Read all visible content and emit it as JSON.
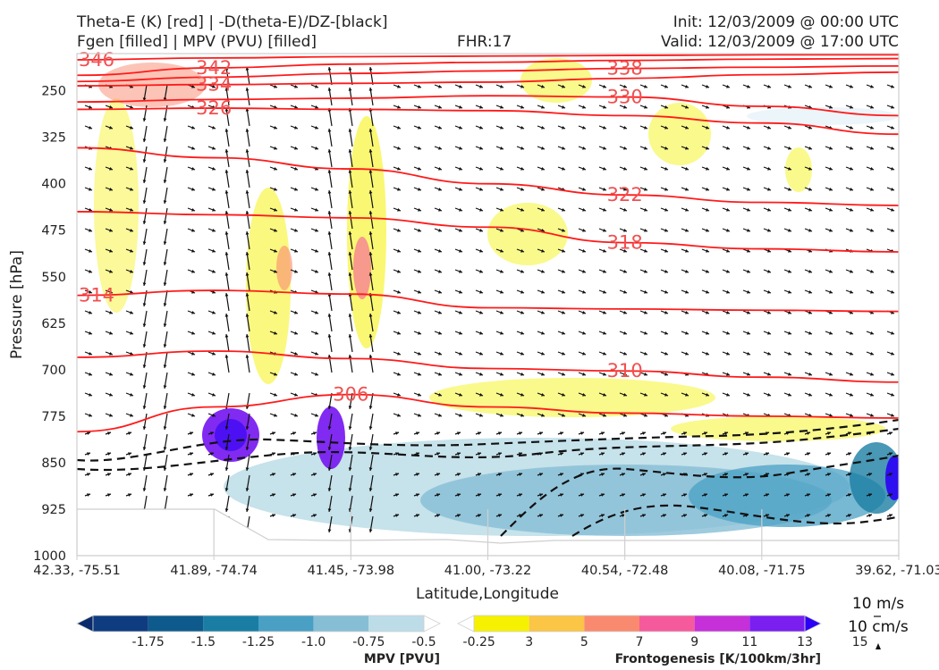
{
  "header": {
    "title_line1": "Theta-E (K) [red] | -D(theta-E)/DZ-[black]",
    "title_line2": "Fgen [filled] | MPV (PVU) [filled]",
    "fhr": "FHR:17",
    "init": "Init: 12/03/2009 @ 00:00 UTC",
    "valid": "Valid: 12/03/2009 @ 17:00 UTC"
  },
  "chart_data": {
    "type": "cross-section",
    "xlabel": "Latitude,Longitude",
    "ylabel": "Pressure [hPa]",
    "x_ticks": [
      "42.33, -75.51",
      "41.89, -74.74",
      "41.45, -73.98",
      "41.00, -73.22",
      "40.54, -72.48",
      "40.08, -71.75",
      "39.62, -71.03"
    ],
    "y_ticks": [
      250,
      325,
      400,
      475,
      550,
      625,
      700,
      775,
      850,
      925,
      1000
    ],
    "ylim": [
      1000,
      190
    ],
    "theta_e_contours": [
      {
        "label": "346",
        "p": [
          200,
          197,
          195,
          194,
          193,
          192,
          192
        ]
      },
      {
        "label": "342",
        "p": [
          225,
          213,
          207,
          204,
          201,
          199,
          198
        ]
      },
      {
        "label": "338",
        "p": [
          235,
          228,
          222,
          218,
          214,
          212,
          210
        ]
      },
      {
        "label": "334",
        "p": [
          242,
          240,
          238,
          236,
          230,
          224,
          220
        ]
      },
      {
        "label": "330",
        "p": [
          268,
          264,
          262,
          258,
          260,
          275,
          290
        ]
      },
      {
        "label": "326",
        "p": [
          280,
          278,
          280,
          282,
          290,
          302,
          320
        ]
      },
      {
        "label": "322",
        "p": [
          342,
          358,
          376,
          400,
          418,
          430,
          435
        ]
      },
      {
        "label": "318",
        "p": [
          445,
          450,
          455,
          470,
          495,
          505,
          510
        ]
      },
      {
        "label": "314",
        "p": [
          580,
          572,
          578,
          600,
          602,
          604,
          606
        ]
      },
      {
        "label": "310",
        "p": [
          680,
          670,
          682,
          698,
          702,
          712,
          720
        ]
      },
      {
        "label": "306",
        "p": [
          800,
          760,
          740,
          760,
          770,
          775,
          778
        ]
      }
    ],
    "wind_reference": {
      "horizontal": "10 m/s",
      "vertical": "10 cm/s"
    },
    "colorbars": [
      {
        "label": "MPV [PVU]",
        "ticks": [
          "-1.75",
          "-1.5",
          "-1.25",
          "-1.0",
          "-0.75",
          "-0.5",
          "-0.25"
        ],
        "colors": [
          "#0b2a6b",
          "#0f3c80",
          "#0e5a8c",
          "#1a7ea4",
          "#49a0c4",
          "#86bed6",
          "#bcdde8",
          "#ffffff"
        ]
      },
      {
        "label": "Frontogenesis [K/100km/3hr]",
        "ticks": [
          "3",
          "5",
          "7",
          "9",
          "11",
          "13",
          "15"
        ],
        "colors": [
          "#ffffff",
          "#f5f100",
          "#fbc545",
          "#fa8a6f",
          "#f55a9c",
          "#c530d8",
          "#7a1ff0",
          "#2b00f5"
        ]
      }
    ]
  }
}
